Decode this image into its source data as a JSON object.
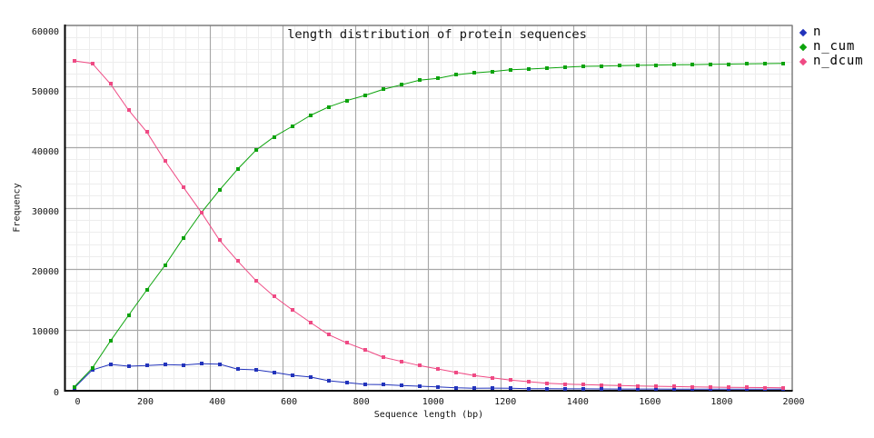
{
  "chart_data": {
    "type": "line",
    "title": "length distribution of protein sequences",
    "xlabel": "Sequence length (bp)",
    "ylabel": "Frequency",
    "xlim": [
      0,
      2000
    ],
    "ylim": [
      0,
      60000
    ],
    "xticks": [
      0,
      200,
      400,
      600,
      800,
      1000,
      1200,
      1400,
      1600,
      1800,
      2000
    ],
    "yticks": [
      0,
      10000,
      20000,
      30000,
      40000,
      50000,
      60000
    ],
    "x_minor_divisions": 60,
    "y_minor_divisions": 30,
    "grid": {
      "major_color": "#a8a8a8",
      "minor_color": "#ededed",
      "major_on": true,
      "minor_on": true
    },
    "legend_position": "top-right-outside",
    "x": [
      25,
      75,
      125,
      175,
      225,
      275,
      325,
      375,
      425,
      475,
      525,
      575,
      625,
      675,
      725,
      775,
      825,
      875,
      925,
      975,
      1025,
      1075,
      1125,
      1175,
      1225,
      1275,
      1325,
      1375,
      1425,
      1475,
      1525,
      1575,
      1625,
      1675,
      1725,
      1775,
      1825,
      1875,
      1925,
      1975
    ],
    "series": [
      {
        "name": "n",
        "color": "#2233bb",
        "marker": "square",
        "values": [
          430,
          3400,
          4330,
          4030,
          4130,
          4280,
          4220,
          4430,
          4370,
          3530,
          3430,
          3030,
          2540,
          2250,
          1640,
          1340,
          1045,
          1000,
          850,
          750,
          640,
          490,
          420,
          430,
          400,
          345,
          340,
          320,
          310,
          300,
          290,
          285,
          280,
          270,
          265,
          260,
          255,
          250,
          250,
          250
        ]
      },
      {
        "name": "n_cum",
        "color": "#0ca30c",
        "marker": "square",
        "values": [
          600,
          3700,
          8160,
          12390,
          16570,
          20600,
          25050,
          29250,
          32950,
          36400,
          39500,
          41700,
          43430,
          45220,
          46610,
          47660,
          48510,
          49500,
          50250,
          51000,
          51300,
          51900,
          52190,
          52430,
          52730,
          52840,
          52990,
          53130,
          53280,
          53330,
          53400,
          53450,
          53490,
          53530,
          53570,
          53610,
          53650,
          53690,
          53730,
          53775
        ]
      },
      {
        "name": "n_dcum",
        "color": "#ef4a84",
        "marker": "square",
        "values": [
          54180,
          53780,
          50400,
          46100,
          42500,
          37760,
          33480,
          29300,
          24730,
          21310,
          18110,
          15510,
          13290,
          11210,
          9210,
          7860,
          6715,
          5500,
          4820,
          4130,
          3580,
          3030,
          2490,
          2130,
          1750,
          1490,
          1240,
          1100,
          1000,
          920,
          850,
          790,
          730,
          680,
          640,
          600,
          570,
          540,
          515,
          490
        ]
      }
    ]
  }
}
